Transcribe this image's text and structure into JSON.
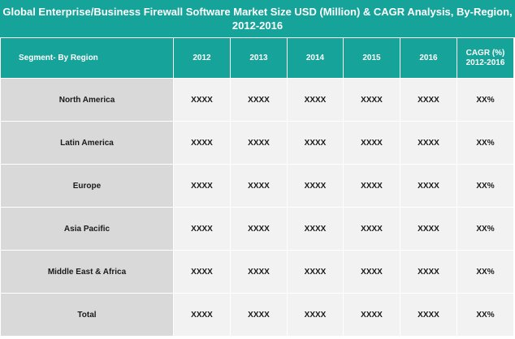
{
  "title": "Global Enterprise/Business Firewall Software Market Size USD (Million) & CAGR Analysis, By-Region, 2012-2016",
  "colors": {
    "header": "#16a39a",
    "region_cell": "#d9d9d9",
    "value_cell": "#f2f2f2"
  },
  "table": {
    "segment_header": "Segment- By Region",
    "year_headers": [
      "2012",
      "2013",
      "2014",
      "2015",
      "2016"
    ],
    "cagr_header_line1": "CAGR (%)",
    "cagr_header_line2": "2012-2016",
    "rows": [
      {
        "region": "North America",
        "values": [
          "XXXX",
          "XXXX",
          "XXXX",
          "XXXX",
          "XXXX"
        ],
        "cagr": "XX%"
      },
      {
        "region": "Latin America",
        "values": [
          "XXXX",
          "XXXX",
          "XXXX",
          "XXXX",
          "XXXX"
        ],
        "cagr": "XX%"
      },
      {
        "region": "Europe",
        "values": [
          "XXXX",
          "XXXX",
          "XXXX",
          "XXXX",
          "XXXX"
        ],
        "cagr": "XX%"
      },
      {
        "region": "Asia Pacific",
        "values": [
          "XXXX",
          "XXXX",
          "XXXX",
          "XXXX",
          "XXXX"
        ],
        "cagr": "XX%"
      },
      {
        "region": "Middle East & Africa",
        "values": [
          "XXXX",
          "XXXX",
          "XXXX",
          "XXXX",
          "XXXX"
        ],
        "cagr": "XX%"
      },
      {
        "region": "Total",
        "values": [
          "XXXX",
          "XXXX",
          "XXXX",
          "XXXX",
          "XXXX"
        ],
        "cagr": "XX%"
      }
    ]
  }
}
